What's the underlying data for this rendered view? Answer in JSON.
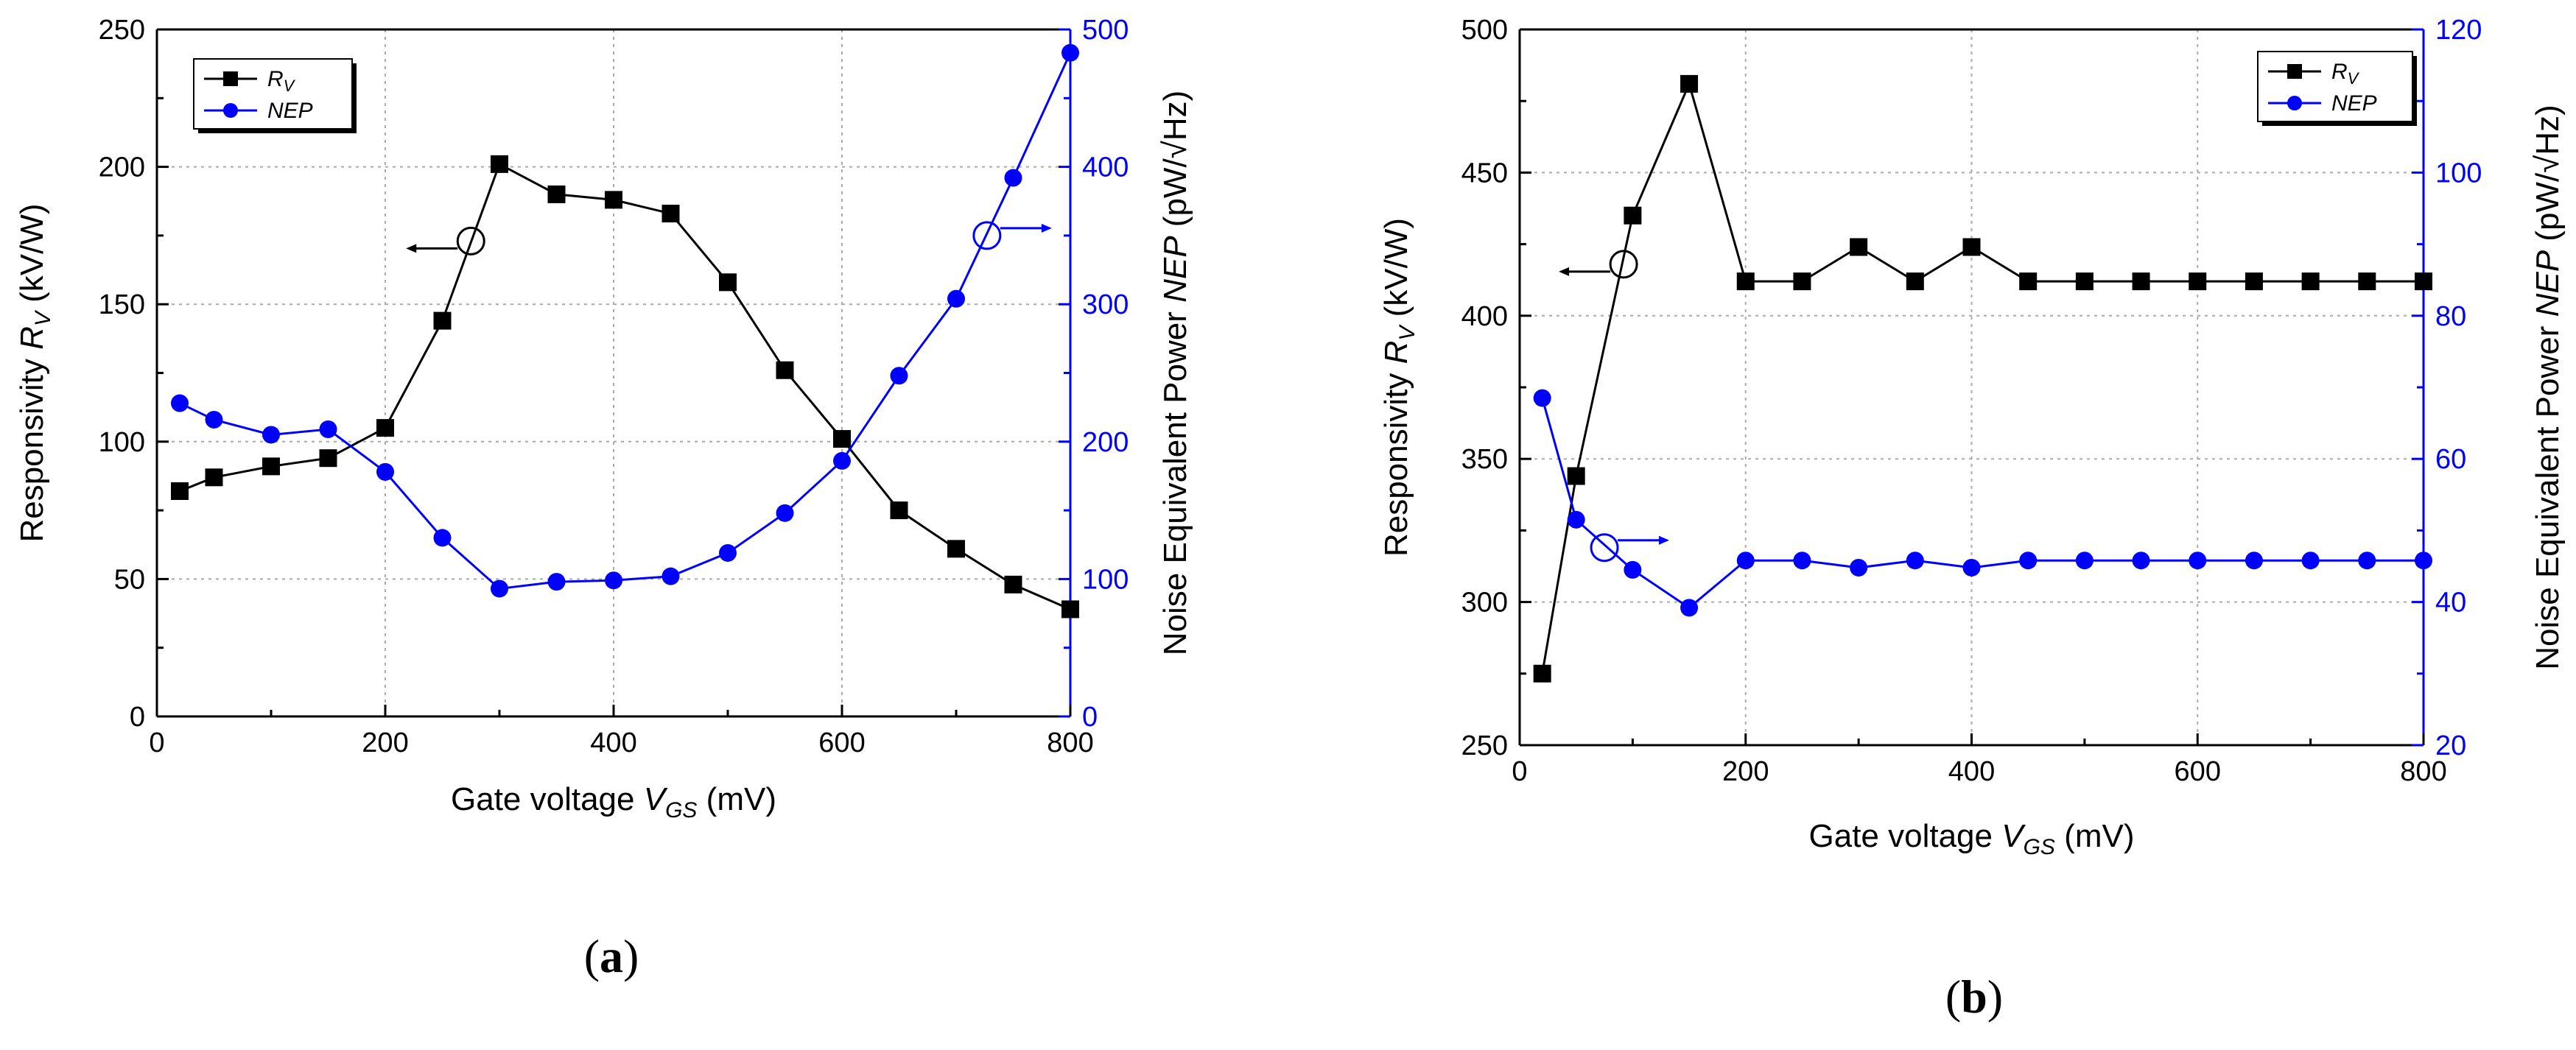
{
  "chart_data": [
    {
      "type": "line",
      "panel_label": "a",
      "title": "",
      "xlabel": {
        "prefix": "Gate voltage ",
        "var": "V",
        "sub": "GS",
        "suffix": " (mV)"
      },
      "ylabel_left": {
        "prefix": "Responsivity ",
        "var": "R",
        "sub": "V",
        "suffix": " (kV/W)"
      },
      "ylabel_right": {
        "prefix": "Noise Equivalent Power ",
        "var": "NEP",
        "suffix": " (pW/√Hz)"
      },
      "xlim": [
        0,
        800
      ],
      "ylim_left": [
        0,
        250
      ],
      "ylim_right": [
        0,
        500
      ],
      "x_ticks": [
        "0",
        "200",
        "400",
        "600",
        "800"
      ],
      "y_left_ticks": [
        "0",
        "50",
        "100",
        "150",
        "200",
        "250"
      ],
      "y_right_ticks": [
        "0",
        "100",
        "200",
        "300",
        "400",
        "500"
      ],
      "grid": true,
      "legend": {
        "placement": "top-left",
        "entries": [
          {
            "main": "R",
            "sub": "V"
          },
          {
            "main": "NEP"
          }
        ]
      },
      "x": [
        20,
        50,
        100,
        150,
        200,
        250,
        300,
        350,
        400,
        450,
        500,
        550,
        600,
        650,
        700,
        750,
        800
      ],
      "series": [
        {
          "name": "RV",
          "axis": "left",
          "color": "#000000",
          "marker": "square",
          "values": [
            82,
            87,
            91,
            94,
            105,
            144,
            201,
            190,
            188,
            183,
            158,
            126,
            101,
            75,
            61,
            48,
            39
          ]
        },
        {
          "name": "NEP",
          "axis": "right",
          "color": "#0000ff",
          "marker": "circle",
          "values": [
            228,
            216,
            205,
            209,
            178,
            130,
            93,
            98,
            99,
            102,
            119,
            148,
            186,
            248,
            304,
            392,
            483
          ]
        }
      ],
      "annotations": [
        {
          "x": 275,
          "y": 173,
          "axis": "left",
          "direction": "left"
        },
        {
          "x": 727,
          "y": 175,
          "axis": "left",
          "direction": "right"
        }
      ]
    },
    {
      "type": "line",
      "panel_label": "b",
      "title": "",
      "xlabel": {
        "prefix": "Gate voltage ",
        "var": "V",
        "sub": "GS",
        "suffix": " (mV)"
      },
      "ylabel_left": {
        "prefix": "Responsivity ",
        "var": "R",
        "sub": "V",
        "suffix": " (kV/W)"
      },
      "ylabel_right": {
        "prefix": "Noise Equivalent Power ",
        "var": "NEP",
        "suffix": " (pW/√Hz)"
      },
      "xlim": [
        0,
        800
      ],
      "ylim_left": [
        250,
        500
      ],
      "ylim_right": [
        20,
        120
      ],
      "x_ticks": [
        "0",
        "200",
        "400",
        "600",
        "800"
      ],
      "y_left_ticks": [
        "250",
        "300",
        "350",
        "400",
        "450",
        "500"
      ],
      "y_right_ticks": [
        "20",
        "40",
        "60",
        "80",
        "100",
        "120"
      ],
      "grid": true,
      "legend": {
        "placement": "top-right",
        "entries": [
          {
            "main": "R",
            "sub": "V"
          },
          {
            "main": "NEP"
          }
        ]
      },
      "x": [
        20,
        50,
        100,
        150,
        200,
        250,
        300,
        350,
        400,
        450,
        500,
        550,
        600,
        650,
        700,
        750,
        800
      ],
      "series": [
        {
          "name": "RV",
          "axis": "left",
          "color": "#000000",
          "marker": "square",
          "values": [
            275,
            344,
            435,
            481,
            412,
            412,
            424,
            412,
            424,
            412,
            412,
            412,
            412,
            412,
            412,
            412,
            412
          ]
        },
        {
          "name": "NEP",
          "axis": "right",
          "color": "#0000ff",
          "marker": "circle",
          "values": [
            68.5,
            51.5,
            44.5,
            39.2,
            45.8,
            45.8,
            44.8,
            45.8,
            44.8,
            45.8,
            45.8,
            45.8,
            45.8,
            45.8,
            45.8,
            45.8,
            45.8
          ]
        }
      ],
      "annotations": [
        {
          "x": 92,
          "y": 418,
          "axis": "left",
          "direction": "left"
        },
        {
          "x": 75,
          "y": 319,
          "axis": "left",
          "direction": "right"
        }
      ]
    }
  ]
}
